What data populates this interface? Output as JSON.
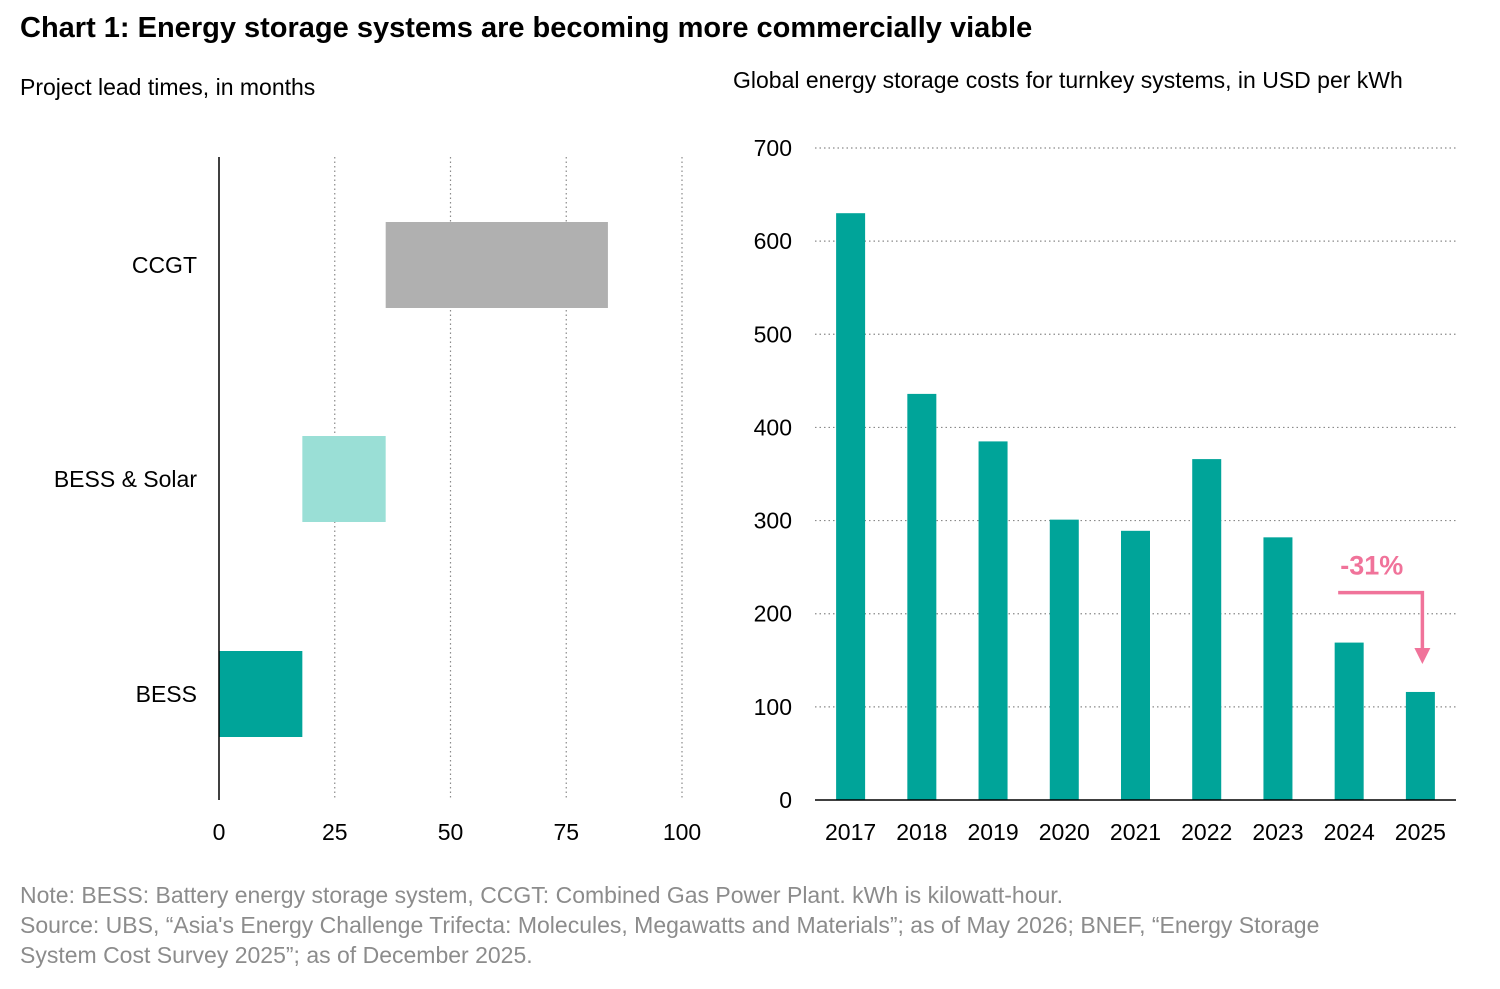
{
  "title": "Chart 1: Energy storage systems are becoming more commercially viable",
  "colors": {
    "teal": "#00a499",
    "light_teal": "#9adfd6",
    "gray": "#b0b0b0",
    "pink": "#f0739a",
    "note_gray": "#8c8c8c"
  },
  "chart_data": [
    {
      "type": "bar",
      "orientation": "horizontal-range",
      "title": "Project lead times, in months",
      "categories": [
        "CCGT",
        "BESS & Solar",
        "BESS"
      ],
      "ranges": [
        [
          36,
          84
        ],
        [
          18,
          36
        ],
        [
          0,
          18
        ]
      ],
      "colors": [
        "#b0b0b0",
        "#9adfd6",
        "#00a499"
      ],
      "xlim": [
        0,
        100
      ],
      "xticks": [
        0,
        25,
        50,
        75,
        100
      ],
      "grid": "vertical-dotted"
    },
    {
      "type": "bar",
      "title": "Global energy storage costs for turnkey systems, in USD per kWh",
      "categories": [
        "2017",
        "2018",
        "2019",
        "2020",
        "2021",
        "2022",
        "2023",
        "2024",
        "2025"
      ],
      "values": [
        630,
        436,
        385,
        301,
        289,
        366,
        282,
        169,
        116
      ],
      "ylim": [
        0,
        700
      ],
      "yticks": [
        0,
        100,
        200,
        300,
        400,
        500,
        600,
        700
      ],
      "grid": "horizontal-dotted",
      "annotation": {
        "text": "-31%",
        "from": "2024",
        "to": "2025"
      }
    }
  ],
  "notes": {
    "note": "Note: BESS: Battery energy storage system, CCGT: Combined Gas Power Plant. kWh is kilowatt-hour.",
    "source_line1": "Source: UBS, “Asia's Energy Challenge Trifecta: Molecules, Megawatts and Materials”; as of May 2026; BNEF, “Energy Storage",
    "source_line2": "System Cost Survey 2025”; as of December 2025."
  }
}
